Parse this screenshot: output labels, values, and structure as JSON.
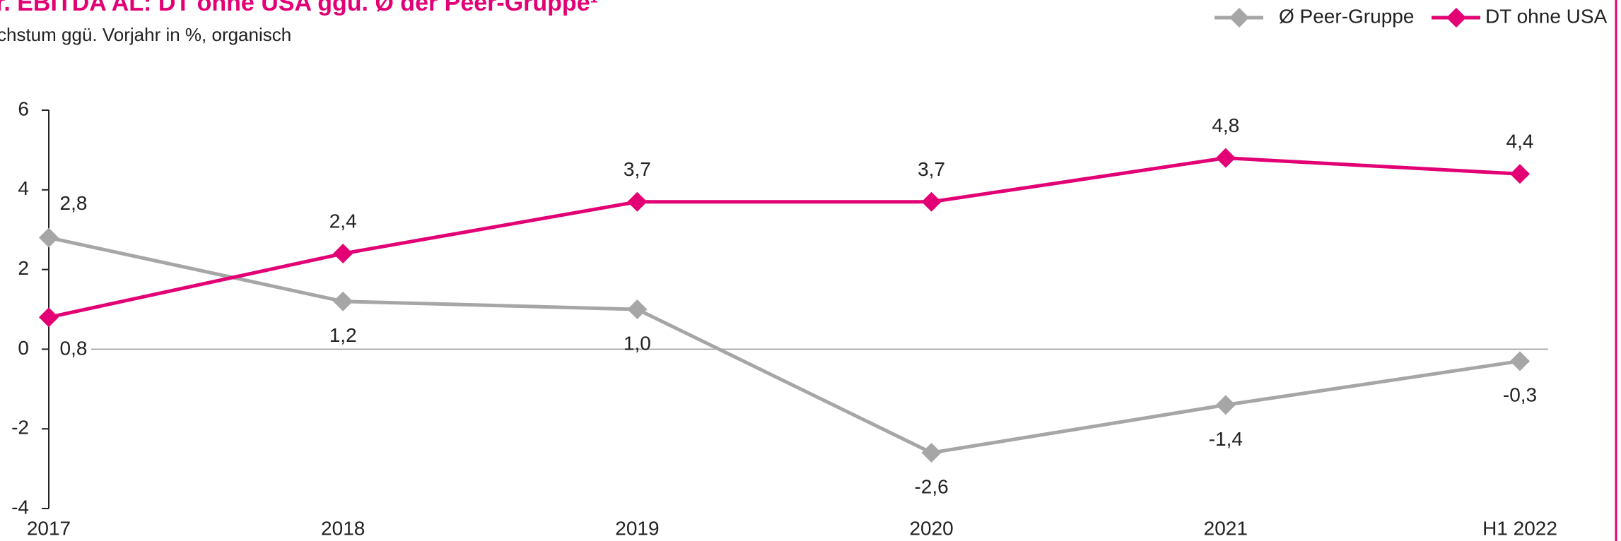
{
  "chart_data": {
    "type": "line",
    "title": "r. EBITDA AL: DT ohne USA ggü. Ø der Peer-Gruppe¹",
    "subtitle": "chstum ggü. Vorjahr in %, organisch",
    "categories": [
      "2017",
      "2018",
      "2019",
      "2020",
      "2021",
      "H1 2022"
    ],
    "series": [
      {
        "name": "Ø Peer-Gruppe",
        "color": "#a6a6a6",
        "values": [
          2.8,
          1.2,
          1.0,
          -2.6,
          -1.4,
          -0.3
        ],
        "value_labels": [
          "2,8",
          "1,2",
          "1,0",
          "-2,6",
          "-1,4",
          "-0,3"
        ]
      },
      {
        "name": "DT ohne USA",
        "color": "#e20074",
        "values": [
          0.8,
          2.4,
          3.7,
          3.7,
          4.8,
          4.4
        ],
        "value_labels": [
          "0,8",
          "2,4",
          "3,7",
          "3,7",
          "4,8",
          "4,4"
        ]
      }
    ],
    "ylim": [
      -4,
      6
    ],
    "yticks": [
      6,
      4,
      2,
      0,
      -2,
      -4
    ],
    "legend": "top-right"
  }
}
